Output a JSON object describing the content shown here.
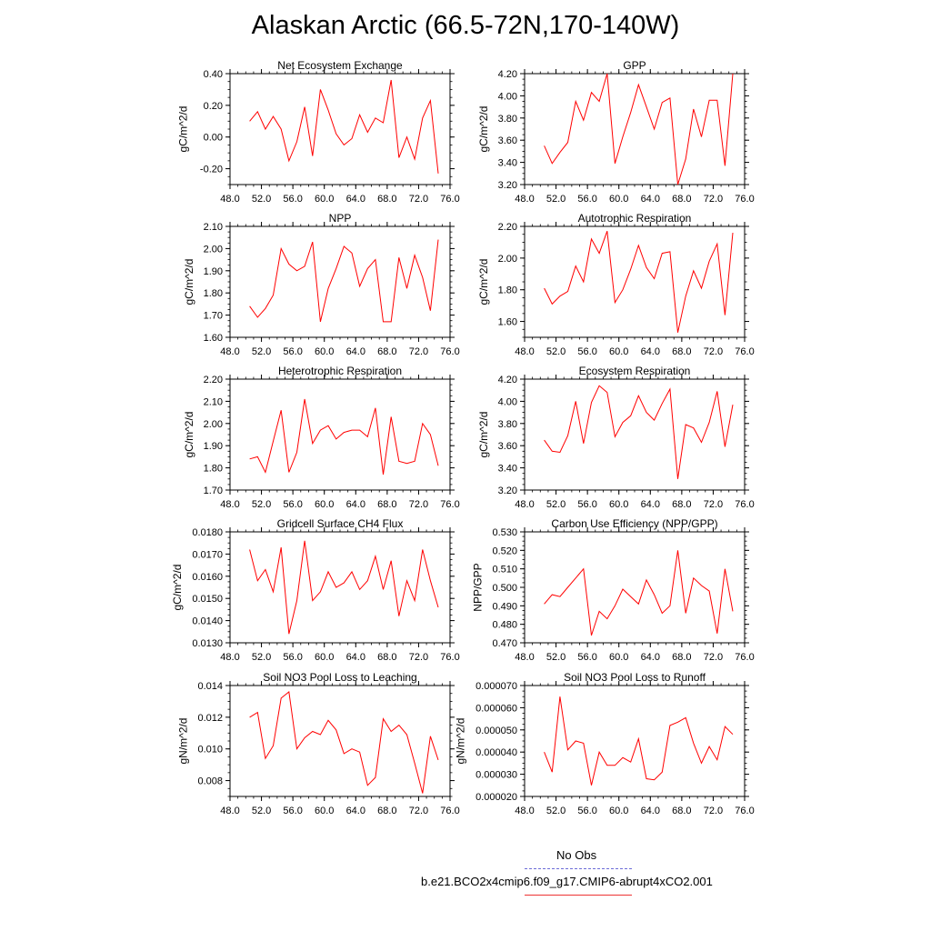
{
  "page": {
    "title": "Alaskan Arctic (66.5-72N,170-140W)"
  },
  "legend": {
    "obs_label": "No Obs",
    "obs_color": "#6c6cd8",
    "case_label": "b.e21.BCO2x4cmip6.f09_g17.CMIP6-abrupt4xCO2.001",
    "case_color": "#ff0000"
  },
  "chart_data": [
    {
      "type": "line",
      "title": "Net Ecosystem Exchange",
      "xlabel": "",
      "ylabel": "gC/m^2/d",
      "xlim": [
        48,
        76
      ],
      "ylim": [
        -0.3,
        0.4
      ],
      "xticks": [
        "48.0",
        "52.0",
        "56.0",
        "60.0",
        "64.0",
        "68.0",
        "72.0",
        "76.0"
      ],
      "yticks": [
        [
          -0.2,
          "-0.20"
        ],
        [
          0.0,
          "0.00"
        ],
        [
          0.2,
          "0.20"
        ],
        [
          0.4,
          "0.40"
        ]
      ],
      "x": [
        50.5,
        51.5,
        52.5,
        53.5,
        54.5,
        55.5,
        56.5,
        57.5,
        58.5,
        59.5,
        60.5,
        61.5,
        62.5,
        63.5,
        64.5,
        65.5,
        66.5,
        67.5,
        68.5,
        69.5,
        70.5,
        71.5,
        72.5,
        73.5,
        74.5
      ],
      "series": [
        {
          "values": [
            0.1,
            0.16,
            0.05,
            0.13,
            0.05,
            -0.15,
            -0.03,
            0.19,
            -0.12,
            0.3,
            0.17,
            0.02,
            -0.05,
            -0.01,
            0.14,
            0.03,
            0.12,
            0.09,
            0.36,
            -0.13,
            0.0,
            -0.14,
            0.12,
            0.23,
            -0.23
          ],
          "color": "#ff0000"
        }
      ]
    },
    {
      "type": "line",
      "title": "GPP",
      "xlabel": "",
      "ylabel": "gC/m^2/d",
      "xlim": [
        48,
        76
      ],
      "ylim": [
        3.2,
        4.2
      ],
      "xticks": [
        "48.0",
        "52.0",
        "56.0",
        "60.0",
        "64.0",
        "68.0",
        "72.0",
        "76.0"
      ],
      "yticks": [
        [
          3.2,
          "3.20"
        ],
        [
          3.4,
          "3.40"
        ],
        [
          3.6,
          "3.60"
        ],
        [
          3.8,
          "3.80"
        ],
        [
          4.0,
          "4.00"
        ],
        [
          4.2,
          "4.20"
        ]
      ],
      "x": [
        50.5,
        51.5,
        52.5,
        53.5,
        54.5,
        55.5,
        56.5,
        57.5,
        58.5,
        59.5,
        60.5,
        61.5,
        62.5,
        63.5,
        64.5,
        65.5,
        66.5,
        67.5,
        68.5,
        69.5,
        70.5,
        71.5,
        72.5,
        73.5,
        74.5
      ],
      "series": [
        {
          "values": [
            3.55,
            3.39,
            3.49,
            3.58,
            3.95,
            3.78,
            4.03,
            3.95,
            4.2,
            3.39,
            3.63,
            3.85,
            4.1,
            3.9,
            3.7,
            3.94,
            3.98,
            3.2,
            3.43,
            3.88,
            3.63,
            3.96,
            3.96,
            3.37,
            4.2
          ],
          "color": "#ff0000"
        }
      ]
    },
    {
      "type": "line",
      "title": "NPP",
      "xlabel": "",
      "ylabel": "gC/m^2/d",
      "xlim": [
        48,
        76
      ],
      "ylim": [
        1.6,
        2.1
      ],
      "xticks": [
        "48.0",
        "52.0",
        "56.0",
        "60.0",
        "64.0",
        "68.0",
        "72.0",
        "76.0"
      ],
      "yticks": [
        [
          1.6,
          "1.60"
        ],
        [
          1.7,
          "1.70"
        ],
        [
          1.8,
          "1.80"
        ],
        [
          1.9,
          "1.90"
        ],
        [
          2.0,
          "2.00"
        ],
        [
          2.1,
          "2.10"
        ]
      ],
      "x": [
        50.5,
        51.5,
        52.5,
        53.5,
        54.5,
        55.5,
        56.5,
        57.5,
        58.5,
        59.5,
        60.5,
        61.5,
        62.5,
        63.5,
        64.5,
        65.5,
        66.5,
        67.5,
        68.5,
        69.5,
        70.5,
        71.5,
        72.5,
        73.5,
        74.5
      ],
      "series": [
        {
          "values": [
            1.74,
            1.69,
            1.73,
            1.79,
            2.0,
            1.93,
            1.9,
            1.92,
            2.03,
            1.67,
            1.82,
            1.91,
            2.01,
            1.98,
            1.83,
            1.91,
            1.95,
            1.67,
            1.67,
            1.96,
            1.82,
            1.97,
            1.87,
            1.72,
            2.04
          ],
          "color": "#ff0000"
        }
      ]
    },
    {
      "type": "line",
      "title": "Autotrophic Respiration",
      "xlabel": "",
      "ylabel": "gC/m^2/d",
      "xlim": [
        48,
        76
      ],
      "ylim": [
        1.5,
        2.2
      ],
      "xticks": [
        "48.0",
        "52.0",
        "56.0",
        "60.0",
        "64.0",
        "68.0",
        "72.0",
        "76.0"
      ],
      "yticks": [
        [
          1.6,
          "1.60"
        ],
        [
          1.8,
          "1.80"
        ],
        [
          2.0,
          "2.00"
        ],
        [
          2.2,
          "2.20"
        ]
      ],
      "x": [
        50.5,
        51.5,
        52.5,
        53.5,
        54.5,
        55.5,
        56.5,
        57.5,
        58.5,
        59.5,
        60.5,
        61.5,
        62.5,
        63.5,
        64.5,
        65.5,
        66.5,
        67.5,
        68.5,
        69.5,
        70.5,
        71.5,
        72.5,
        73.5,
        74.5
      ],
      "series": [
        {
          "values": [
            1.81,
            1.71,
            1.76,
            1.79,
            1.95,
            1.85,
            2.12,
            2.03,
            2.17,
            1.72,
            1.8,
            1.93,
            2.08,
            1.94,
            1.87,
            2.03,
            2.04,
            1.53,
            1.76,
            1.92,
            1.81,
            1.98,
            2.09,
            1.64,
            2.16
          ],
          "color": "#ff0000"
        }
      ]
    },
    {
      "type": "line",
      "title": "Heterotrophic Respiration",
      "xlabel": "",
      "ylabel": "gC/m^2/d",
      "xlim": [
        48,
        76
      ],
      "ylim": [
        1.7,
        2.2
      ],
      "xticks": [
        "48.0",
        "52.0",
        "56.0",
        "60.0",
        "64.0",
        "68.0",
        "72.0",
        "76.0"
      ],
      "yticks": [
        [
          1.7,
          "1.70"
        ],
        [
          1.8,
          "1.80"
        ],
        [
          1.9,
          "1.90"
        ],
        [
          2.0,
          "2.00"
        ],
        [
          2.1,
          "2.10"
        ],
        [
          2.2,
          "2.20"
        ]
      ],
      "x": [
        50.5,
        51.5,
        52.5,
        53.5,
        54.5,
        55.5,
        56.5,
        57.5,
        58.5,
        59.5,
        60.5,
        61.5,
        62.5,
        63.5,
        64.5,
        65.5,
        66.5,
        67.5,
        68.5,
        69.5,
        70.5,
        71.5,
        72.5,
        73.5,
        74.5
      ],
      "series": [
        {
          "values": [
            1.84,
            1.85,
            1.78,
            1.92,
            2.06,
            1.78,
            1.87,
            2.11,
            1.91,
            1.97,
            1.99,
            1.93,
            1.96,
            1.97,
            1.97,
            1.94,
            2.07,
            1.77,
            2.03,
            1.83,
            1.82,
            1.83,
            2.0,
            1.95,
            1.81
          ],
          "color": "#ff0000"
        }
      ]
    },
    {
      "type": "line",
      "title": "Ecosystem Respiration",
      "xlabel": "",
      "ylabel": "gC/m^2/d",
      "xlim": [
        48,
        76
      ],
      "ylim": [
        3.2,
        4.2
      ],
      "xticks": [
        "48.0",
        "52.0",
        "56.0",
        "60.0",
        "64.0",
        "68.0",
        "72.0",
        "76.0"
      ],
      "yticks": [
        [
          3.2,
          "3.20"
        ],
        [
          3.4,
          "3.40"
        ],
        [
          3.6,
          "3.60"
        ],
        [
          3.8,
          "3.80"
        ],
        [
          4.0,
          "4.00"
        ],
        [
          4.2,
          "4.20"
        ]
      ],
      "x": [
        50.5,
        51.5,
        52.5,
        53.5,
        54.5,
        55.5,
        56.5,
        57.5,
        58.5,
        59.5,
        60.5,
        61.5,
        62.5,
        63.5,
        64.5,
        65.5,
        66.5,
        67.5,
        68.5,
        69.5,
        70.5,
        71.5,
        72.5,
        73.5,
        74.5
      ],
      "series": [
        {
          "values": [
            3.65,
            3.55,
            3.54,
            3.69,
            4.0,
            3.62,
            3.99,
            4.14,
            4.08,
            3.68,
            3.81,
            3.87,
            4.05,
            3.9,
            3.83,
            3.98,
            4.11,
            3.3,
            3.79,
            3.76,
            3.63,
            3.81,
            4.09,
            3.59,
            3.97
          ],
          "color": "#ff0000"
        }
      ]
    },
    {
      "type": "line",
      "title": "Gridcell Surface CH4 Flux",
      "xlabel": "",
      "ylabel": "gC/m^2/d",
      "xlim": [
        48,
        76
      ],
      "ylim": [
        0.013,
        0.018
      ],
      "xticks": [
        "48.0",
        "52.0",
        "56.0",
        "60.0",
        "64.0",
        "68.0",
        "72.0",
        "76.0"
      ],
      "yticks": [
        [
          0.013,
          "0.0130"
        ],
        [
          0.014,
          "0.0140"
        ],
        [
          0.015,
          "0.0150"
        ],
        [
          0.016,
          "0.0160"
        ],
        [
          0.017,
          "0.0170"
        ],
        [
          0.018,
          "0.0180"
        ]
      ],
      "x": [
        50.5,
        51.5,
        52.5,
        53.5,
        54.5,
        55.5,
        56.5,
        57.5,
        58.5,
        59.5,
        60.5,
        61.5,
        62.5,
        63.5,
        64.5,
        65.5,
        66.5,
        67.5,
        68.5,
        69.5,
        70.5,
        71.5,
        72.5,
        73.5,
        74.5
      ],
      "series": [
        {
          "values": [
            0.0172,
            0.0158,
            0.0163,
            0.0153,
            0.0173,
            0.0134,
            0.0149,
            0.0176,
            0.0149,
            0.0153,
            0.0162,
            0.0155,
            0.0157,
            0.0162,
            0.0154,
            0.0158,
            0.0169,
            0.0154,
            0.0167,
            0.0142,
            0.0158,
            0.0149,
            0.0172,
            0.0158,
            0.0146
          ],
          "color": "#ff0000"
        }
      ]
    },
    {
      "type": "line",
      "title": "Carbon Use Efficiency (NPP/GPP)",
      "xlabel": "",
      "ylabel": "NPP/GPP",
      "xlim": [
        48,
        76
      ],
      "ylim": [
        0.47,
        0.53
      ],
      "xticks": [
        "48.0",
        "52.0",
        "56.0",
        "60.0",
        "64.0",
        "68.0",
        "72.0",
        "76.0"
      ],
      "yticks": [
        [
          0.47,
          "0.470"
        ],
        [
          0.48,
          "0.480"
        ],
        [
          0.49,
          "0.490"
        ],
        [
          0.5,
          "0.500"
        ],
        [
          0.51,
          "0.510"
        ],
        [
          0.52,
          "0.520"
        ],
        [
          0.53,
          "0.530"
        ]
      ],
      "x": [
        50.5,
        51.5,
        52.5,
        53.5,
        54.5,
        55.5,
        56.5,
        57.5,
        58.5,
        59.5,
        60.5,
        61.5,
        62.5,
        63.5,
        64.5,
        65.5,
        66.5,
        67.5,
        68.5,
        69.5,
        70.5,
        71.5,
        72.5,
        73.5,
        74.5
      ],
      "series": [
        {
          "values": [
            0.491,
            0.496,
            0.495,
            0.5,
            0.505,
            0.51,
            0.474,
            0.487,
            0.483,
            0.49,
            0.499,
            0.495,
            0.491,
            0.504,
            0.496,
            0.486,
            0.49,
            0.52,
            0.486,
            0.505,
            0.501,
            0.498,
            0.475,
            0.51,
            0.487
          ],
          "color": "#ff0000"
        }
      ]
    },
    {
      "type": "line",
      "title": "Soil NO3 Pool Loss to Leaching",
      "xlabel": "",
      "ylabel": "gN/m^2/d",
      "xlim": [
        48,
        76
      ],
      "ylim": [
        0.007,
        0.014
      ],
      "xticks": [
        "48.0",
        "52.0",
        "56.0",
        "60.0",
        "64.0",
        "68.0",
        "72.0",
        "76.0"
      ],
      "yticks": [
        [
          0.008,
          "0.008"
        ],
        [
          0.01,
          "0.010"
        ],
        [
          0.012,
          "0.012"
        ],
        [
          0.014,
          "0.014"
        ]
      ],
      "x": [
        50.5,
        51.5,
        52.5,
        53.5,
        54.5,
        55.5,
        56.5,
        57.5,
        58.5,
        59.5,
        60.5,
        61.5,
        62.5,
        63.5,
        64.5,
        65.5,
        66.5,
        67.5,
        68.5,
        69.5,
        70.5,
        71.5,
        72.5,
        73.5,
        74.5
      ],
      "series": [
        {
          "values": [
            0.012,
            0.0123,
            0.0094,
            0.0102,
            0.0132,
            0.0136,
            0.01,
            0.0107,
            0.0111,
            0.0109,
            0.0118,
            0.0112,
            0.0097,
            0.01,
            0.0098,
            0.0077,
            0.0082,
            0.0119,
            0.0111,
            0.0115,
            0.0109,
            0.0091,
            0.0072,
            0.0108,
            0.0093
          ],
          "color": "#ff0000"
        }
      ]
    },
    {
      "type": "line",
      "title": "Soil NO3 Pool Loss to Runoff",
      "xlabel": "",
      "ylabel": "gN/m^2/d",
      "xlim": [
        48,
        76
      ],
      "ylim": [
        2e-05,
        7e-05
      ],
      "xticks": [
        "48.0",
        "52.0",
        "56.0",
        "60.0",
        "64.0",
        "68.0",
        "72.0",
        "76.0"
      ],
      "yticks": [
        [
          2e-05,
          "0.000020"
        ],
        [
          3e-05,
          "0.000030"
        ],
        [
          4e-05,
          "0.000040"
        ],
        [
          5e-05,
          "0.000050"
        ],
        [
          6e-05,
          "0.000060"
        ],
        [
          7e-05,
          "0.000070"
        ]
      ],
      "x": [
        50.5,
        51.5,
        52.5,
        53.5,
        54.5,
        55.5,
        56.5,
        57.5,
        58.5,
        59.5,
        60.5,
        61.5,
        62.5,
        63.5,
        64.5,
        65.5,
        66.5,
        67.5,
        68.5,
        69.5,
        70.5,
        71.5,
        72.5,
        73.5,
        74.5
      ],
      "series": [
        {
          "values": [
            4e-05,
            3.1e-05,
            6.5e-05,
            4.1e-05,
            4.5e-05,
            4.4e-05,
            2.5e-05,
            4e-05,
            3.4e-05,
            3.4e-05,
            3.75e-05,
            3.55e-05,
            4.6e-05,
            2.8e-05,
            2.75e-05,
            3.1e-05,
            5.2e-05,
            5.35e-05,
            5.55e-05,
            4.4e-05,
            3.5e-05,
            4.25e-05,
            3.65e-05,
            5.15e-05,
            4.8e-05
          ],
          "color": "#ff0000"
        }
      ]
    }
  ]
}
